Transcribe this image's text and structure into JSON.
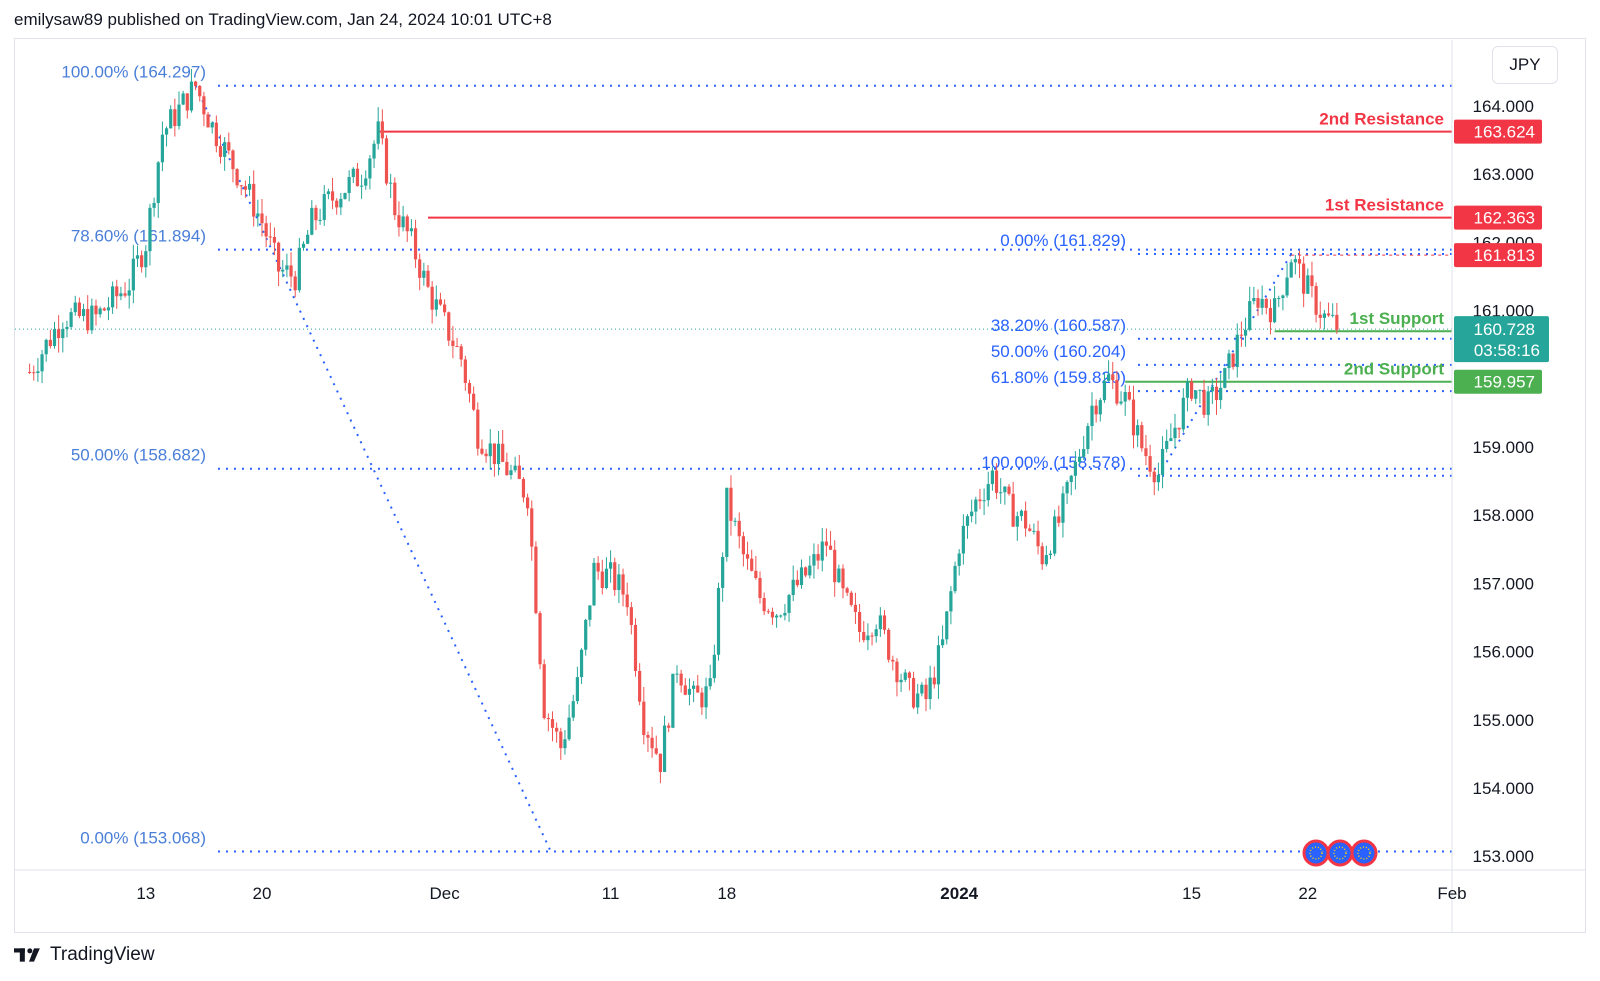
{
  "header": {
    "text": "emilysaw89 published on TradingView.com, Jan 24, 2024 10:01 UTC+8"
  },
  "footer": {
    "brand": "TradingView"
  },
  "currency_button": {
    "label": "JPY"
  },
  "colors": {
    "up": "#26a69a",
    "down": "#ef5350",
    "resistance": "#f23645",
    "support": "#4caf50",
    "fib": "#2962ff",
    "fib_text": "#4a7fd8",
    "axis_text": "#131722"
  },
  "chart_data": {
    "type": "candlestick",
    "title": "",
    "y_range": [
      152.9,
      164.55
    ],
    "y_ticks": [
      "164.000",
      "163.000",
      "162.000",
      "161.000",
      "160.000",
      "159.000",
      "158.000",
      "157.000",
      "156.000",
      "155.000",
      "154.000",
      "153.000"
    ],
    "x_ticks": [
      "13",
      "20",
      "Dec",
      "11",
      "18",
      "2024",
      "15",
      "22",
      "Feb"
    ],
    "x_ticks_bold": [
      "2024"
    ],
    "price_path": [
      [
        "Nov 6",
        160.1
      ],
      [
        "Nov 8",
        160.9
      ],
      [
        "Nov 10",
        160.9
      ],
      [
        "Nov 12",
        161.4
      ],
      [
        "Nov 13",
        162.0
      ],
      [
        "Nov 14",
        163.6
      ],
      [
        "Nov 16",
        164.297
      ],
      [
        "Nov 17",
        163.7
      ],
      [
        "Nov 19",
        162.8
      ],
      [
        "Nov 20",
        162.3
      ],
      [
        "Nov 21",
        161.6
      ],
      [
        "Nov 22",
        161.5
      ],
      [
        "Nov 23",
        162.3
      ],
      [
        "Nov 24",
        162.6
      ],
      [
        "Nov 26",
        163.0
      ],
      [
        "Nov 27",
        163.6
      ],
      [
        "Nov 28",
        162.5
      ],
      [
        "Nov 29",
        162.0
      ],
      [
        "Nov 30",
        161.3
      ],
      [
        "Dec 1",
        160.8
      ],
      [
        "Dec 2",
        160.3
      ],
      [
        "Dec 3",
        159.2
      ],
      [
        "Dec 4",
        158.9
      ],
      [
        "Dec 5",
        158.6
      ],
      [
        "Dec 6",
        158.3
      ],
      [
        "Dec 7",
        155.2
      ],
      [
        "Dec 8",
        154.6
      ],
      [
        "Dec 9",
        155.5
      ],
      [
        "Dec 10",
        157.2
      ],
      [
        "Dec 11",
        157.1
      ],
      [
        "Dec 12",
        156.8
      ],
      [
        "Dec 13",
        155.0
      ],
      [
        "Dec 14",
        154.4
      ],
      [
        "Dec 15",
        155.8
      ],
      [
        "Dec 16",
        155.3
      ],
      [
        "Dec 17",
        155.4
      ],
      [
        "Dec 18",
        158.2
      ],
      [
        "Dec 19",
        157.4
      ],
      [
        "Dec 20",
        156.8
      ],
      [
        "Dec 21",
        156.6
      ],
      [
        "Dec 22",
        156.9
      ],
      [
        "Dec 23",
        157.2
      ],
      [
        "Dec 24",
        157.6
      ],
      [
        "Dec 25",
        156.8
      ],
      [
        "Dec 26",
        156.3
      ],
      [
        "Dec 27",
        156.5
      ],
      [
        "Dec 28",
        155.9
      ],
      [
        "Dec 29",
        155.4
      ],
      [
        "Dec 30",
        155.3
      ],
      [
        "Dec 31",
        156.1
      ],
      [
        "Jan 1",
        157.6
      ],
      [
        "Jan 2",
        158.2
      ],
      [
        "Jan 3",
        158.6
      ],
      [
        "Jan 4",
        158.1
      ],
      [
        "Jan 5",
        157.9
      ],
      [
        "Jan 6",
        157.4
      ],
      [
        "Jan 7",
        157.9
      ],
      [
        "Jan 8",
        158.7
      ],
      [
        "Jan 9",
        159.6
      ],
      [
        "Jan 10",
        160.0
      ],
      [
        "Jan 11",
        159.7
      ],
      [
        "Jan 12",
        159.0
      ],
      [
        "Jan 13",
        158.6
      ],
      [
        "Jan 14",
        159.3
      ],
      [
        "Jan 15",
        159.9
      ],
      [
        "Jan 16",
        159.6
      ],
      [
        "Jan 17",
        160.0
      ],
      [
        "Jan 18",
        160.7
      ],
      [
        "Jan 19",
        161.2
      ],
      [
        "Jan 20",
        161.0
      ],
      [
        "Jan 21",
        161.8
      ],
      [
        "Jan 22",
        161.3
      ],
      [
        "Jan 23",
        160.9
      ],
      [
        "Jan 24",
        160.728
      ]
    ],
    "horizontal_levels": [
      {
        "label": "2nd Resistance",
        "price": 163.624,
        "tag": "163.624",
        "kind": "resistance"
      },
      {
        "label": "1st Resistance",
        "price": 162.363,
        "tag": "162.363",
        "kind": "resistance"
      },
      {
        "label": "1st Support",
        "price": 160.698,
        "tag": "160.698",
        "kind": "support"
      },
      {
        "label": "2nd Support",
        "price": 159.957,
        "tag": "159.957",
        "kind": "support"
      }
    ],
    "price_tags": [
      {
        "price": 161.813,
        "tag": "161.813",
        "kind": "resistance"
      },
      {
        "price": 160.728,
        "tag": "160.728",
        "countdown": "03:58:16",
        "kind": "last"
      }
    ],
    "fib_large": [
      {
        "label": "100.00% (164.297)",
        "price": 164.297
      },
      {
        "label": "78.60% (161.894)",
        "price": 161.894
      },
      {
        "label": "50.00% (158.682)",
        "price": 158.682
      },
      {
        "label": "0.00% (153.068)",
        "price": 153.068
      }
    ],
    "fib_small": [
      {
        "label": "0.00% (161.829)",
        "price": 161.829
      },
      {
        "label": "38.20% (160.587)",
        "price": 160.587
      },
      {
        "label": "50.00% (160.204)",
        "price": 160.204
      },
      {
        "label": "61.80% (159.820)",
        "price": 159.82
      },
      {
        "label": "100.00% (158.578)",
        "price": 158.578
      }
    ]
  }
}
